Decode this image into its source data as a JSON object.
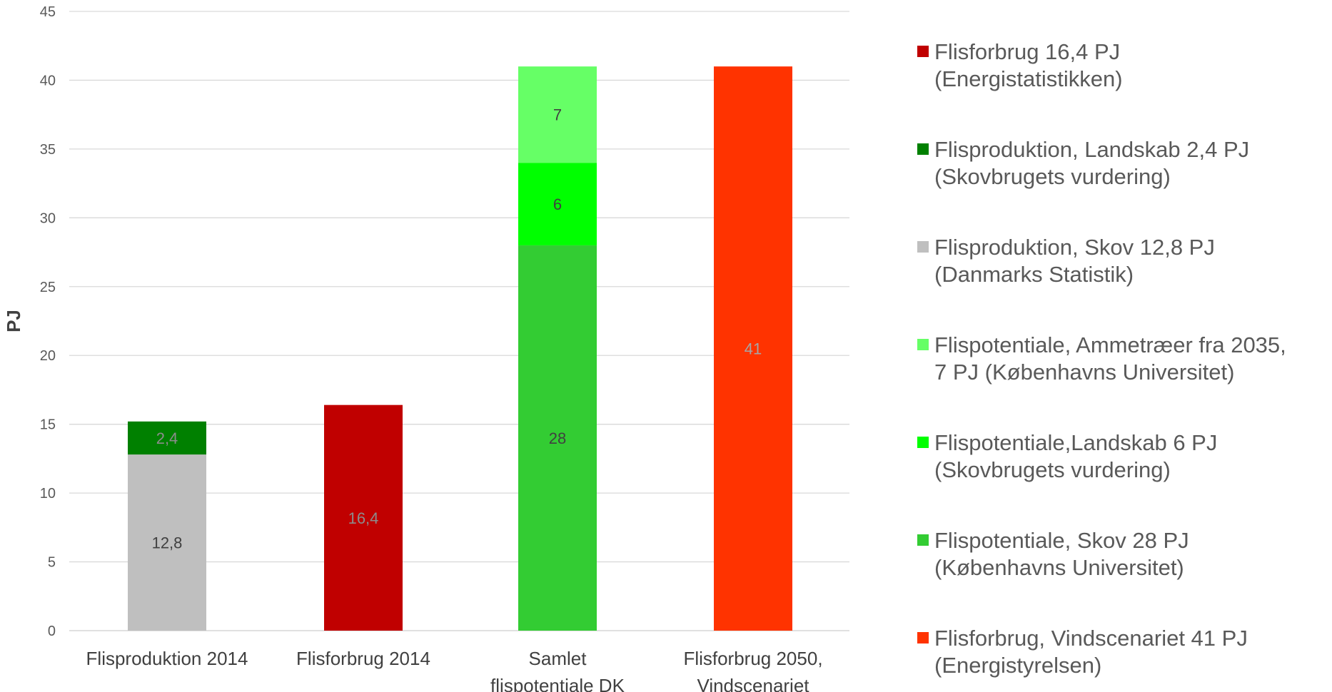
{
  "chart_data": {
    "type": "bar",
    "stacked": true,
    "title": "",
    "xlabel": "",
    "ylabel": "PJ",
    "ylim": [
      0,
      45
    ],
    "yticks": [
      0,
      5,
      10,
      15,
      20,
      25,
      30,
      35,
      40,
      45
    ],
    "grid": true,
    "legend_position": "right",
    "categories": [
      [
        "Flisproduktion 2014"
      ],
      [
        "Flisforbrug  2014"
      ],
      [
        "Samlet",
        "flispotentiale DK"
      ],
      [
        "Flisforbrug 2050,",
        "Vindscenariet"
      ]
    ],
    "series": [
      {
        "name": "Flisforbrug 16,4 PJ (Energistatistikken)",
        "legend_lines": [
          "Flisforbrug 16,4 PJ",
          "(Energistatistikken)"
        ],
        "color": "#c00000",
        "label_color": "#8c8c8c",
        "values": [
          null,
          16.4,
          null,
          null
        ],
        "labels": [
          null,
          "16,4",
          null,
          null
        ]
      },
      {
        "name": "Flisproduktion, Landskab 2,4 PJ (Skovbrugets vurdering)",
        "legend_lines": [
          "Flisproduktion, Landskab 2,4 PJ",
          "(Skovbrugets vurdering)"
        ],
        "color": "#008000",
        "label_color": "#8c8c8c",
        "values": [
          2.4,
          null,
          null,
          null
        ],
        "labels": [
          "2,4",
          null,
          null,
          null
        ]
      },
      {
        "name": "Flisproduktion, Skov 12,8 PJ (Danmarks Statistik)",
        "legend_lines": [
          "Flisproduktion, Skov 12,8 PJ",
          "(Danmarks Statistik)"
        ],
        "color": "#bfbfbf",
        "label_color": "#404040",
        "values": [
          12.8,
          null,
          null,
          null
        ],
        "labels": [
          "12,8",
          null,
          null,
          null
        ]
      },
      {
        "name": "Flispotentiale, Ammetræer fra 2035, 7 PJ (Københavns Universitet)",
        "legend_lines": [
          "Flispotentiale, Ammetræer fra 2035,",
          "7 PJ (Københavns Universitet)"
        ],
        "color": "#66ff66",
        "label_color": "#404040",
        "values": [
          null,
          null,
          7,
          null
        ],
        "labels": [
          null,
          null,
          "7",
          null
        ]
      },
      {
        "name": "Flispotentiale,Landskab 6 PJ (Skovbrugets vurdering)",
        "legend_lines": [
          "Flispotentiale,Landskab 6 PJ",
          "(Skovbrugets vurdering)"
        ],
        "color": "#00ff00",
        "label_color": "#404040",
        "values": [
          null,
          null,
          6,
          null
        ],
        "labels": [
          null,
          null,
          "6",
          null
        ]
      },
      {
        "name": "Flispotentiale, Skov 28 PJ (Københavns Universitet)",
        "legend_lines": [
          "Flispotentiale, Skov 28 PJ",
          "(Københavns Universitet)"
        ],
        "color": "#33cc33",
        "label_color": "#404040",
        "values": [
          null,
          null,
          28,
          null
        ],
        "labels": [
          null,
          null,
          "28",
          null
        ]
      },
      {
        "name": "Flisforbrug, Vindscenariet 41 PJ (Energistyrelsen)",
        "legend_lines": [
          "Flisforbrug, Vindscenariet 41 PJ",
          "(Energistyrelsen)"
        ],
        "color": "#ff3300",
        "label_color": "#a6a6a6",
        "values": [
          null,
          null,
          null,
          41
        ],
        "labels": [
          null,
          null,
          null,
          "41"
        ]
      }
    ],
    "stack_order": [
      [
        2,
        1
      ],
      [
        0
      ],
      [
        5,
        4,
        3
      ],
      [
        6
      ]
    ]
  }
}
